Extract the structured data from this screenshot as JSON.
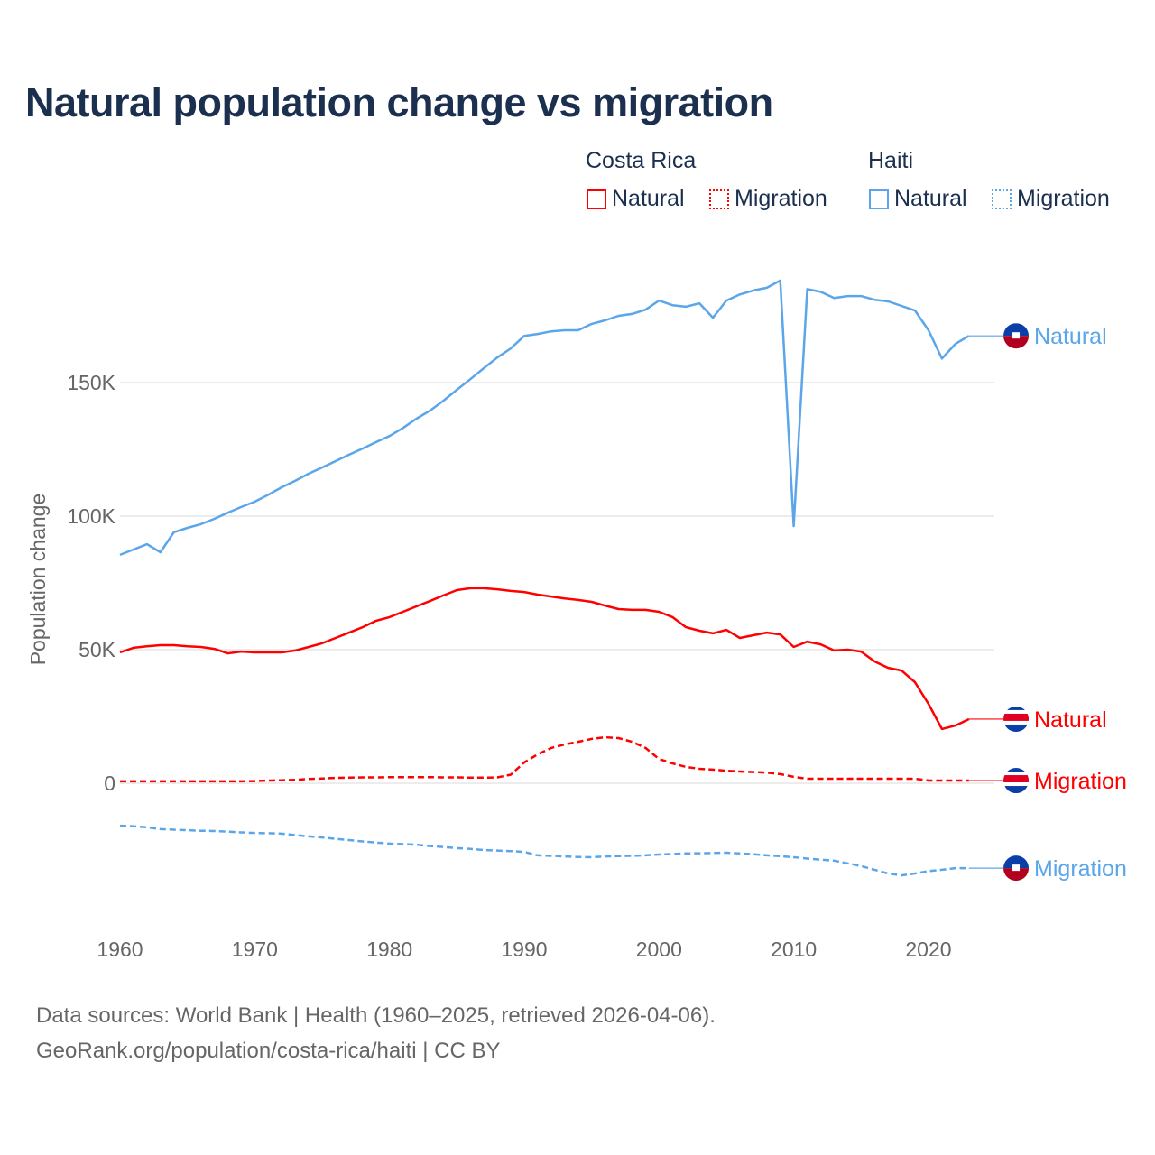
{
  "title": "Natural population change vs migration",
  "legend": {
    "groups": [
      {
        "name": "Costa Rica",
        "items": [
          {
            "label": "Natural",
            "style": "solid"
          },
          {
            "label": "Migration",
            "style": "dotted"
          }
        ],
        "color": "#ff0000"
      },
      {
        "name": "Haiti",
        "items": [
          {
            "label": "Natural",
            "style": "solid"
          },
          {
            "label": "Migration",
            "style": "dotted"
          }
        ],
        "color": "#5ba6ea"
      }
    ]
  },
  "footer": {
    "line1": "Data sources: World Bank | Health (1960–2025, retrieved 2026-04-06).",
    "line2": "GeoRank.org/population/costa-rica/haiti | CC BY"
  },
  "chart_data": {
    "type": "line",
    "title": "Natural population change vs migration",
    "xlabel": "",
    "ylabel": "Population change",
    "xlim": [
      1960,
      2025
    ],
    "ylim": [
      -45000,
      200000
    ],
    "x_ticks": [
      1960,
      1970,
      1980,
      1990,
      2000,
      2010,
      2020
    ],
    "y_ticks": [
      {
        "value": 0,
        "label": "0"
      },
      {
        "value": 50000,
        "label": "50K"
      },
      {
        "value": 100000,
        "label": "100K"
      },
      {
        "value": 150000,
        "label": "150K"
      }
    ],
    "grid": true,
    "x_start": 1960,
    "unit": 1000,
    "series": [
      {
        "name": "Haiti Natural",
        "country": "Haiti",
        "end_label": "Natural",
        "color": "#5ba6ea",
        "dash": "solid",
        "flag": "haiti",
        "values": [
          85.5,
          87.5,
          89.5,
          86.5,
          94,
          95.6,
          97,
          99,
          101.3,
          103.4,
          105.4,
          108,
          110.8,
          113.2,
          115.9,
          118.2,
          120.6,
          123,
          125.3,
          127.7,
          130,
          133,
          136.5,
          139.5,
          143.2,
          147.3,
          151.3,
          155.4,
          159.4,
          162.8,
          167.5,
          168.2,
          169.2,
          169.6,
          169.6,
          172,
          173.3,
          175,
          175.7,
          177.3,
          180.7,
          179,
          178.4,
          179.7,
          174.3,
          180.7,
          183,
          184.5,
          185.5,
          188.2,
          96.3,
          185,
          184,
          181.7,
          182.4,
          182.4,
          181,
          180.4,
          178.7,
          177,
          169.6,
          159,
          164.5,
          167.5
        ]
      },
      {
        "name": "Costa Rica Natural",
        "country": "Costa Rica",
        "end_label": "Natural",
        "color": "#ff0000",
        "dash": "solid",
        "flag": "costa-rica",
        "values": [
          49,
          50.7,
          51.3,
          51.7,
          51.7,
          51.3,
          51,
          50.3,
          48.6,
          49.3,
          49,
          49,
          49,
          49.7,
          51,
          52.4,
          54.4,
          56.4,
          58.4,
          60.8,
          62.2,
          64.2,
          66.2,
          68.2,
          70.3,
          72.3,
          73,
          73,
          72.6,
          72,
          71.6,
          70.6,
          69.9,
          69.2,
          68.6,
          67.9,
          66.5,
          65.2,
          64.9,
          64.9,
          64.2,
          62.2,
          58.4,
          57.1,
          56.1,
          57.4,
          54.4,
          55.4,
          56.4,
          55.7,
          51,
          53,
          52,
          49.7,
          50,
          49.3,
          45.6,
          43.2,
          42.2,
          37.8,
          29.7,
          20.3,
          21.6,
          24
        ]
      },
      {
        "name": "Costa Rica Migration",
        "country": "Costa Rica",
        "end_label": "Migration",
        "color": "#ff0000",
        "dash": "dashed",
        "flag": "costa-rica",
        "values": [
          0.7,
          0.7,
          0.7,
          0.7,
          0.7,
          0.7,
          0.7,
          0.7,
          0.7,
          0.7,
          0.8,
          1.0,
          1.1,
          1.3,
          1.6,
          1.8,
          2.0,
          2.1,
          2.2,
          2.2,
          2.3,
          2.3,
          2.3,
          2.3,
          2.2,
          2.2,
          2.1,
          2.1,
          2.2,
          3.2,
          7.8,
          10.8,
          13.2,
          14.5,
          15.5,
          16.6,
          17.2,
          16.9,
          15.5,
          13.2,
          9.1,
          7.4,
          6.1,
          5.4,
          5.1,
          4.7,
          4.4,
          4.2,
          4.0,
          3.4,
          2.4,
          1.7,
          1.7,
          1.7,
          1.7,
          1.7,
          1.7,
          1.7,
          1.7,
          1.7,
          1.0,
          1.0,
          1.0,
          1.0
        ]
      },
      {
        "name": "Haiti Migration",
        "country": "Haiti",
        "end_label": "Migration",
        "color": "#5ba6ea",
        "dash": "dashed",
        "flag": "haiti",
        "values": [
          -15.9,
          -16.1,
          -16.5,
          -17.2,
          -17.4,
          -17.6,
          -17.8,
          -17.9,
          -18.1,
          -18.4,
          -18.6,
          -18.7,
          -18.9,
          -19.4,
          -19.9,
          -20.3,
          -20.8,
          -21.3,
          -21.8,
          -22.2,
          -22.6,
          -22.8,
          -23,
          -23.5,
          -23.9,
          -24.3,
          -24.6,
          -25,
          -25.2,
          -25.4,
          -25.7,
          -27,
          -27.2,
          -27.4,
          -27.6,
          -27.7,
          -27.4,
          -27.3,
          -27.2,
          -27,
          -26.7,
          -26.5,
          -26.3,
          -26.2,
          -26.1,
          -26,
          -26.3,
          -26.6,
          -27,
          -27.3,
          -27.7,
          -28.2,
          -28.6,
          -29,
          -30,
          -31,
          -32.4,
          -33.8,
          -34.5,
          -33.8,
          -32.9,
          -32.4,
          -31.8,
          -31.8
        ]
      }
    ]
  }
}
